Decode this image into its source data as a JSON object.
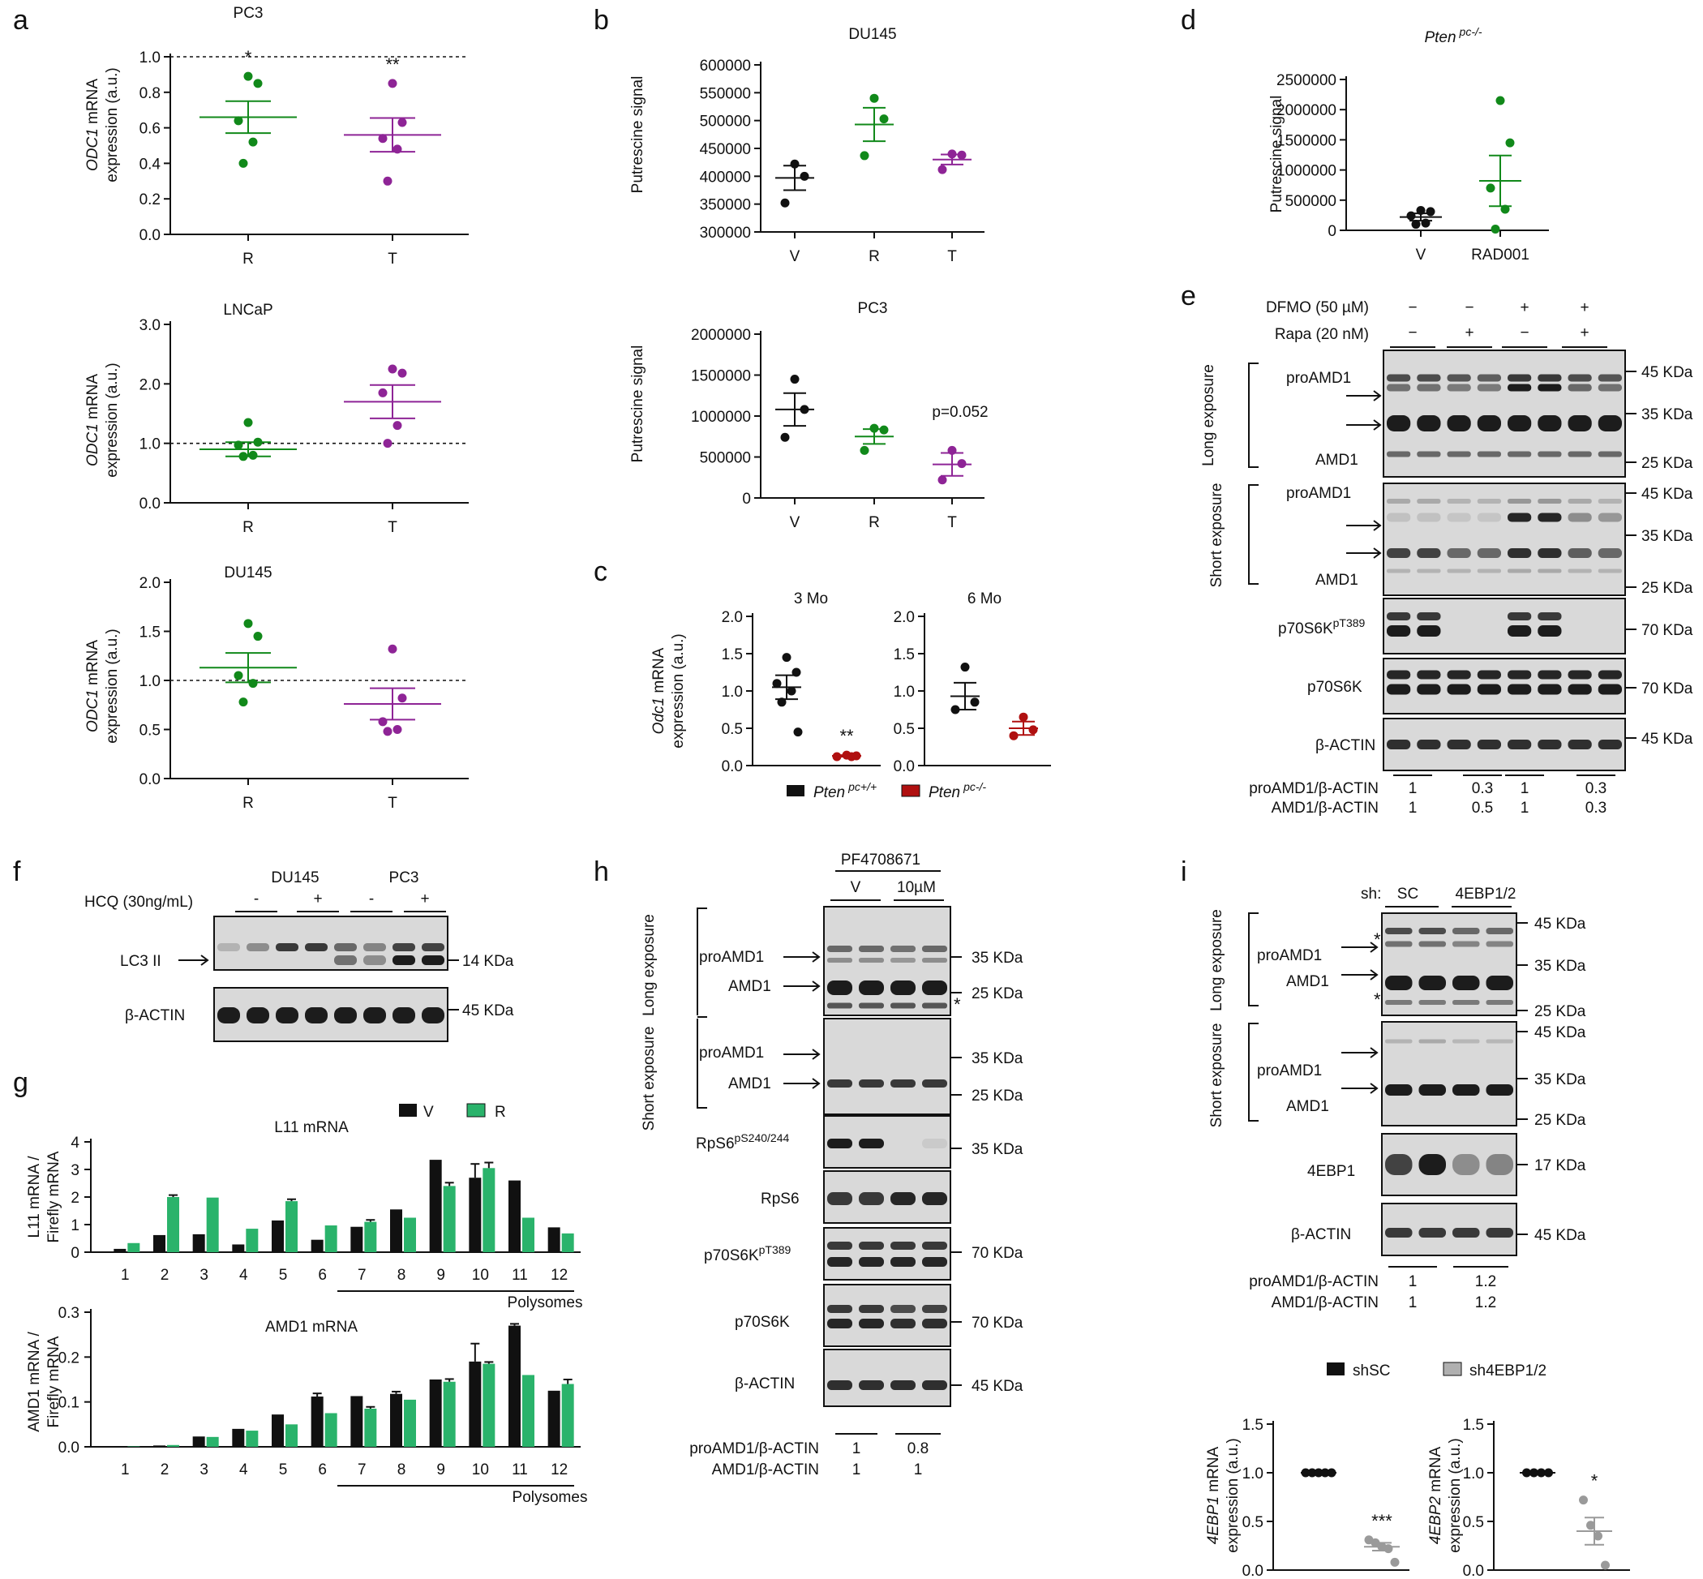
{
  "colors": {
    "green": "#11891a",
    "purple": "#8e2496",
    "black": "#111111",
    "red": "#b01010",
    "gray": "#9a9a9a",
    "bar_green": "#2ab36b"
  },
  "panel_a": {
    "label": "a",
    "ylabel_italic": "ODC1",
    "ylabel_rest": " mRNA",
    "ylabel2": "expression (a.u.)",
    "plots": [
      {
        "title": "PC3",
        "yticks": [
          "0.0",
          "0.2",
          "0.4",
          "0.6",
          "0.8",
          "1.0"
        ],
        "ymin": 0,
        "ymax": 1.0,
        "ref": 1.0,
        "groups": [
          {
            "label": "R",
            "color": "green",
            "values": [
              0.89,
              0.85,
              0.64,
              0.52,
              0.4
            ],
            "mean": 0.66,
            "sem": 0.09,
            "sig": "*"
          },
          {
            "label": "T",
            "color": "purple",
            "values": [
              0.85,
              0.63,
              0.54,
              0.48,
              0.3
            ],
            "mean": 0.56,
            "sem": 0.095,
            "sig": "**"
          }
        ]
      },
      {
        "title": "LNCaP",
        "yticks": [
          "0.0",
          "1.0",
          "2.0",
          "3.0"
        ],
        "ymin": 0,
        "ymax": 3.0,
        "ref": 1.0,
        "groups": [
          {
            "label": "R",
            "color": "green",
            "values": [
              1.35,
              1.02,
              0.97,
              0.8,
              0.78
            ],
            "mean": 0.9,
            "sem": 0.12,
            "sig": ""
          },
          {
            "label": "T",
            "color": "purple",
            "values": [
              2.25,
              2.18,
              1.85,
              1.3,
              1.0
            ],
            "mean": 1.7,
            "sem": 0.28,
            "sig": ""
          }
        ]
      },
      {
        "title": "DU145",
        "yticks": [
          "0.0",
          "0.5",
          "1.0",
          "1.5",
          "2.0"
        ],
        "ymin": 0,
        "ymax": 2.0,
        "ref": 1.0,
        "groups": [
          {
            "label": "R",
            "color": "green",
            "values": [
              1.58,
              1.45,
              1.05,
              0.97,
              0.78
            ],
            "mean": 1.13,
            "sem": 0.15,
            "sig": ""
          },
          {
            "label": "T",
            "color": "purple",
            "values": [
              1.32,
              0.82,
              0.58,
              0.5,
              0.48
            ],
            "mean": 0.76,
            "sem": 0.16,
            "sig": ""
          }
        ]
      }
    ]
  },
  "panel_b": {
    "label": "b",
    "ylabel": "Putrescine signal",
    "plots": [
      {
        "title": "DU145",
        "yticks": [
          "300000",
          "350000",
          "400000",
          "450000",
          "500000",
          "550000",
          "600000"
        ],
        "ymin": 300000,
        "ymax": 600000,
        "annotation": "",
        "groups": [
          {
            "label": "V",
            "color": "black",
            "values": [
              422000,
              400000,
              352000
            ],
            "mean": 397000,
            "sem": 22000
          },
          {
            "label": "R",
            "color": "green",
            "values": [
              540000,
              503000,
              437000
            ],
            "mean": 493000,
            "sem": 30000
          },
          {
            "label": "T",
            "color": "purple",
            "values": [
              440000,
              438000,
              412000
            ],
            "mean": 430000,
            "sem": 9000
          }
        ]
      },
      {
        "title": "PC3",
        "yticks": [
          "0",
          "500000",
          "1000000",
          "1500000",
          "2000000"
        ],
        "ymin": 0,
        "ymax": 2000000,
        "annotation": "p=0.052",
        "groups": [
          {
            "label": "V",
            "color": "black",
            "values": [
              1450000,
              1080000,
              740000
            ],
            "mean": 1080000,
            "sem": 200000
          },
          {
            "label": "R",
            "color": "green",
            "values": [
              850000,
              830000,
              580000
            ],
            "mean": 750000,
            "sem": 90000
          },
          {
            "label": "T",
            "color": "purple",
            "values": [
              580000,
              420000,
              220000
            ],
            "mean": 410000,
            "sem": 140000
          }
        ]
      }
    ]
  },
  "panel_c": {
    "label": "c",
    "ylabel_italic": "Odc1",
    "ylabel_rest": " mRNA",
    "ylabel2": "expression (a.u.)",
    "yticks": [
      "0.0",
      "0.5",
      "1.0",
      "1.5",
      "2.0"
    ],
    "plots": [
      {
        "title": "3 Mo",
        "groups": [
          {
            "color": "black",
            "values": [
              1.45,
              1.25,
              1.1,
              1.0,
              0.85,
              0.45
            ],
            "mean": 1.05,
            "sem": 0.16
          },
          {
            "color": "red",
            "values": [
              0.14,
              0.13,
              0.12,
              0.12
            ],
            "mean": 0.13,
            "sem": 0.01,
            "sig": "**"
          }
        ]
      },
      {
        "title": "6 Mo",
        "groups": [
          {
            "color": "black",
            "values": [
              1.32,
              0.85,
              0.75
            ],
            "mean": 0.93,
            "sem": 0.18
          },
          {
            "color": "red",
            "values": [
              0.65,
              0.48,
              0.4
            ],
            "mean": 0.5,
            "sem": 0.09
          }
        ]
      }
    ],
    "legend": [
      {
        "color": "black",
        "label": "Pten",
        "sup": "pc+/+"
      },
      {
        "color": "red",
        "label": "Pten",
        "sup": "pc-/-"
      }
    ]
  },
  "panel_d": {
    "label": "d",
    "title": "Pten",
    "title_sup": "pc-/-",
    "ylabel": "Putrescine signal",
    "yticks": [
      "0",
      "500000",
      "1000000",
      "1500000",
      "2000000",
      "2500000"
    ],
    "groups": [
      {
        "label": "V",
        "color": "black",
        "values": [
          330000,
          310000,
          240000,
          120000,
          100000
        ],
        "mean": 220000,
        "sem": 60000
      },
      {
        "label": "RAD001",
        "color": "green",
        "values": [
          2150000,
          1450000,
          700000,
          350000,
          20000
        ],
        "mean": 820000,
        "sem": 420000
      }
    ]
  },
  "panel_e": {
    "label": "e",
    "treatments": [
      {
        "name": "DFMO (50 µM)",
        "signs": [
          "−",
          "−",
          "+",
          "+"
        ]
      },
      {
        "name": "Rapa (20 nM)",
        "signs": [
          "−",
          "+",
          "−",
          "+"
        ]
      }
    ],
    "groups": [
      "Long exposure",
      "Short exposure"
    ],
    "bands": {
      "proAMD1": "proAMD1",
      "AMD1": "AMD1",
      "p70pt": "p70S6K",
      "p70pt_sup": "pT389",
      "p70": "p70S6K",
      "actin": "β-ACTIN"
    },
    "markers": {
      "k45": "45 KDa",
      "k35": "35 KDa",
      "k25": "25 KDa",
      "k70": "70 KDa"
    },
    "quant": [
      {
        "name": "proAMD1/β-ACTIN",
        "values": [
          "1",
          "0.3",
          "1",
          "0.3"
        ]
      },
      {
        "name": "AMD1/β-ACTIN",
        "values": [
          "1",
          "0.5",
          "1",
          "0.3"
        ]
      }
    ]
  },
  "panel_f": {
    "label": "f",
    "treatment": "HCQ (30ng/mL)",
    "cells": [
      "DU145",
      "PC3"
    ],
    "signs": [
      "-",
      "+",
      "-",
      "+"
    ],
    "band1": "LC3 II",
    "band2": "β-ACTIN",
    "marker1": "14 KDa",
    "marker2": "45 KDa"
  },
  "panel_g": {
    "label": "g",
    "legend": [
      "V",
      "R"
    ],
    "polysomes": "Polysomes",
    "charts": [
      {
        "title": "L11 mRNA",
        "ylabel1": "L11 mRNA /",
        "ylabel2": "Firefly mRNA",
        "yticks": [
          "0",
          "1",
          "2",
          "3",
          "4"
        ],
        "ymax": 4,
        "categories": [
          "1",
          "2",
          "3",
          "4",
          "5",
          "6",
          "7",
          "8",
          "9",
          "10",
          "11",
          "12"
        ],
        "series": [
          {
            "name": "V",
            "values": [
              0.12,
              0.62,
              0.65,
              0.28,
              1.15,
              0.45,
              0.92,
              1.55,
              3.35,
              2.7,
              2.6,
              0.9
            ]
          },
          {
            "name": "R",
            "values": [
              0.33,
              2.0,
              1.98,
              0.85,
              1.85,
              0.97,
              1.1,
              1.25,
              2.4,
              3.05,
              1.25,
              0.68
            ]
          }
        ],
        "errV": [
          0,
          0,
          0,
          0,
          0,
          0,
          0,
          0,
          0,
          0.5,
          0,
          0
        ],
        "errR": [
          0,
          0.07,
          0,
          0,
          0.07,
          0,
          0.07,
          0,
          0.12,
          0.2,
          0,
          0
        ]
      },
      {
        "title": "AMD1 mRNA",
        "ylabel1": "AMD1 mRNA /",
        "ylabel2": "Firefly mRNA",
        "yticks": [
          "0.0",
          "0.1",
          "0.2",
          "0.3"
        ],
        "ymax": 0.3,
        "categories": [
          "1",
          "2",
          "3",
          "4",
          "5",
          "6",
          "7",
          "8",
          "9",
          "10",
          "11",
          "12"
        ],
        "series": [
          {
            "name": "V",
            "values": [
              0.001,
              0.003,
              0.023,
              0.04,
              0.072,
              0.112,
              0.113,
              0.118,
              0.15,
              0.19,
              0.27,
              0.125
            ]
          },
          {
            "name": "R",
            "values": [
              0.001,
              0.004,
              0.022,
              0.036,
              0.05,
              0.075,
              0.085,
              0.105,
              0.145,
              0.185,
              0.16,
              0.14
            ]
          }
        ],
        "errV": [
          0,
          0,
          0,
          0,
          0,
          0.007,
          0,
          0.005,
          0,
          0.04,
          0.004,
          0
        ],
        "errR": [
          0,
          0,
          0,
          0,
          0,
          0,
          0.004,
          0,
          0.006,
          0.004,
          0,
          0.01
        ]
      }
    ]
  },
  "panel_h": {
    "label": "h",
    "drug": "PF4708671",
    "conds": [
      "V",
      "10µM"
    ],
    "groups": [
      "Long exposure",
      "Short exposure"
    ],
    "bands": {
      "proAMD1": "proAMD1",
      "AMD1": "AMD1",
      "rps6p": "RpS6",
      "rps6p_sup": "pS240/244",
      "rps6": "RpS6",
      "p70pt": "p70S6K",
      "p70pt_sup": "pT389",
      "p70": "p70S6K",
      "actin": "β-ACTIN"
    },
    "markers": {
      "k45": "45 KDa",
      "k35": "35 KDa",
      "k25": "25 KDa",
      "k70": "70 KDa"
    },
    "quant": [
      {
        "name": "proAMD1/β-ACTIN",
        "values": [
          "1",
          "0.8"
        ]
      },
      {
        "name": "AMD1/β-ACTIN",
        "values": [
          "1",
          "1"
        ]
      }
    ]
  },
  "panel_i": {
    "label": "i",
    "sh": "sh:",
    "conds": [
      "SC",
      "4EBP1/2"
    ],
    "groups": [
      "Long exposure",
      "Short exposure"
    ],
    "bands": {
      "proAMD1": "proAMD1",
      "AMD1": "AMD1",
      "ebp": "4EBP1",
      "actin": "β-ACTIN"
    },
    "markers": {
      "k45": "45 KDa",
      "k35": "35 KDa",
      "k25": "25 KDa",
      "k17": "17 KDa"
    },
    "quant": [
      {
        "name": "proAMD1/β-ACTIN",
        "values": [
          "1",
          "1.2"
        ]
      },
      {
        "name": "AMD1/β-ACTIN",
        "values": [
          "1",
          "1.2"
        ]
      }
    ],
    "legend": [
      "shSC",
      "sh4EBP1/2"
    ],
    "plots": [
      {
        "ylabel_italic": "4EBP1",
        "ylabel_rest": " mRNA",
        "ylabel2": "expression (a.u.)",
        "yticks": [
          "0.0",
          "0.5",
          "1.0",
          "1.5"
        ],
        "groups": [
          {
            "color": "black",
            "values": [
              1,
              1,
              1,
              1,
              1
            ],
            "mean": 1,
            "sem": 0
          },
          {
            "color": "gray",
            "values": [
              0.31,
              0.28,
              0.24,
              0.22,
              0.08
            ],
            "mean": 0.24,
            "sem": 0.04,
            "sig": "***"
          }
        ]
      },
      {
        "ylabel_italic": "4EBP2",
        "ylabel_rest": " mRNA",
        "ylabel2": "expression (a.u.)",
        "yticks": [
          "0.0",
          "0.5",
          "1.0",
          "1.5"
        ],
        "groups": [
          {
            "color": "black",
            "values": [
              1,
              1,
              1,
              1
            ],
            "mean": 1,
            "sem": 0
          },
          {
            "color": "gray",
            "values": [
              0.72,
              0.46,
              0.35,
              0.05
            ],
            "mean": 0.4,
            "sem": 0.14,
            "sig": "*"
          }
        ]
      }
    ]
  }
}
